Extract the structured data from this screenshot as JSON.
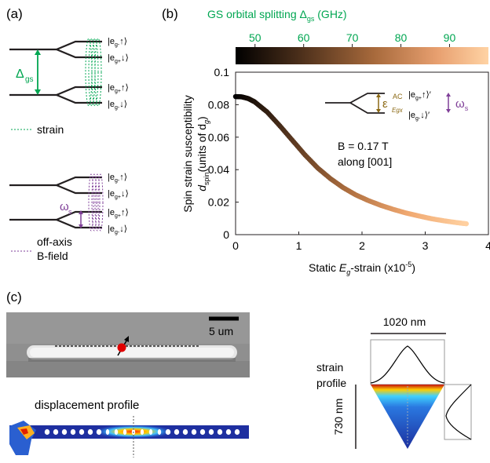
{
  "panel_a": {
    "label": "(a)",
    "delta_gs": "Δ",
    "delta_gs_sub": "gs",
    "omega_s": "ω",
    "omega_s_sub": "s",
    "states": [
      "|e",
      "g-",
      "↑⟩",
      "|e",
      "g+",
      "↓⟩",
      "|e",
      "g+",
      "↑⟩",
      "|e",
      "g-",
      "↓⟩"
    ],
    "legend_strain": "strain",
    "legend_bfield_line1": "off-axis",
    "legend_bfield_line2": "B-field"
  },
  "panel_b": {
    "label": "(b)",
    "colorbar_title": "GS orbital splitting Δ",
    "colorbar_title_sub": "gs",
    "colorbar_unit": " (GHz)",
    "colorbar_ticks": [
      "50",
      "60",
      "70",
      "80",
      "90"
    ],
    "ylabel_line1": "Spin strain susceptibility",
    "ylabel_line2_d": "d",
    "ylabel_line2_sub": "spin",
    "ylabel_line2_rest": "(units of d",
    "ylabel_line2_sub2": "g",
    "ylabel_line2_end": ")",
    "xlabel_start": "Static ",
    "xlabel_e": "E",
    "xlabel_sub": "g",
    "xlabel_end": "-strain (x10",
    "xlabel_exp": "-5",
    "xlabel_close": ")",
    "annotation_b": "B = 0.17 T",
    "annotation_along": "along [001]",
    "inset_eps": "ε",
    "inset_eps_sup": "AC",
    "inset_eps_sub": "Egx",
    "inset_omega": "ω",
    "inset_omega_sub": "s",
    "inset_state_top": "|e",
    "inset_state_top_sub": "g+",
    "inset_state_top_end": "↑⟩′",
    "inset_state_bot": "|e",
    "inset_state_bot_sub": "g-",
    "inset_state_bot_end": "↓⟩′"
  },
  "chart_data": {
    "type": "scatter",
    "x": [
      0,
      0.1,
      0.2,
      0.3,
      0.5,
      0.7,
      0.9,
      1.1,
      1.3,
      1.5,
      1.7,
      1.9,
      2.1,
      2.3,
      2.5,
      2.7,
      2.9,
      3.1,
      3.3,
      3.5,
      3.65
    ],
    "y": [
      0.085,
      0.0848,
      0.0838,
      0.0818,
      0.0755,
      0.067,
      0.058,
      0.049,
      0.041,
      0.0345,
      0.029,
      0.0245,
      0.021,
      0.018,
      0.0155,
      0.0133,
      0.0115,
      0.0098,
      0.0085,
      0.0074,
      0.0067
    ],
    "xlim": [
      0,
      4
    ],
    "ylim": [
      0,
      0.1
    ],
    "xticks": [
      "0",
      "1",
      "2",
      "3",
      "4"
    ],
    "yticks": [
      "0",
      "0.02",
      "0.04",
      "0.06",
      "0.08",
      "0.1"
    ],
    "colormap": [
      "#000000",
      "#5a3820",
      "#b07040",
      "#f0a870",
      "#ffd0a0"
    ],
    "colorbar_range_ghz": [
      46,
      98
    ],
    "grid": false
  },
  "panel_c": {
    "label": "(c)",
    "scalebar": "5 um",
    "displacement_title": "displacement profile",
    "strain_label_line1": "strain",
    "strain_label_line2": "profile",
    "width_label": "1020 nm",
    "height_label": "730 nm"
  },
  "colors": {
    "green": "#00a651",
    "purple": "#7f3f98",
    "brown": "#8b6914",
    "text": "#231f20"
  }
}
